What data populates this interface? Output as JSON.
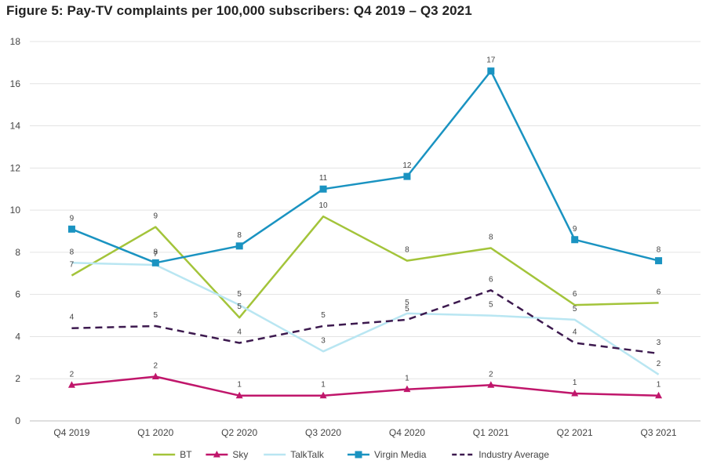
{
  "chart_data": {
    "type": "line",
    "title": "Figure 5: Pay-TV complaints per 100,000 subscribers: Q4 2019 – Q3 2021",
    "categories": [
      "Q4 2019",
      "Q1 2020",
      "Q2 2020",
      "Q3 2020",
      "Q4 2020",
      "Q1 2021",
      "Q2 2021",
      "Q3 2021"
    ],
    "ylim": [
      0,
      18
    ],
    "yticks": [
      "0",
      "2",
      "4",
      "6",
      "8",
      "10",
      "12",
      "14",
      "16",
      "18"
    ],
    "grid": "horizontal",
    "legend_position": "bottom",
    "series": [
      {
        "name": "BT",
        "color": "#A3C43A",
        "marker": "none",
        "dash": false,
        "values": [
          6.9,
          9.2,
          4.9,
          9.7,
          7.6,
          8.2,
          5.5,
          5.6
        ],
        "labels": [
          "7",
          "9",
          "5",
          "10",
          "8",
          "8",
          "6",
          "6"
        ]
      },
      {
        "name": "Sky",
        "color": "#C0166B",
        "marker": "triangle",
        "dash": false,
        "values": [
          1.7,
          2.1,
          1.2,
          1.2,
          1.5,
          1.7,
          1.3,
          1.2
        ],
        "labels": [
          "2",
          "2",
          "1",
          "1",
          "1",
          "2",
          "1",
          "1"
        ]
      },
      {
        "name": "TalkTalk",
        "color": "#B9E6F2",
        "marker": "none",
        "dash": false,
        "values": [
          7.5,
          7.4,
          5.5,
          3.3,
          5.1,
          5.0,
          4.8,
          2.2
        ],
        "labels": [
          "8",
          "7",
          "5",
          "3",
          "5",
          "5",
          "5",
          "2"
        ]
      },
      {
        "name": "Virgin Media",
        "color": "#1A93C1",
        "marker": "square",
        "dash": false,
        "values": [
          9.1,
          7.5,
          8.3,
          11.0,
          11.6,
          16.6,
          8.6,
          7.6
        ],
        "labels": [
          "9",
          "8",
          "8",
          "11",
          "12",
          "17",
          "9",
          "8"
        ]
      },
      {
        "name": "Industry Average",
        "color": "#3D1A4F",
        "marker": "none",
        "dash": true,
        "values": [
          4.4,
          4.5,
          3.7,
          4.5,
          4.8,
          6.2,
          3.7,
          3.2
        ],
        "labels": [
          "4",
          "5",
          "4",
          "5",
          "5",
          "6",
          "4",
          "3"
        ]
      }
    ]
  }
}
